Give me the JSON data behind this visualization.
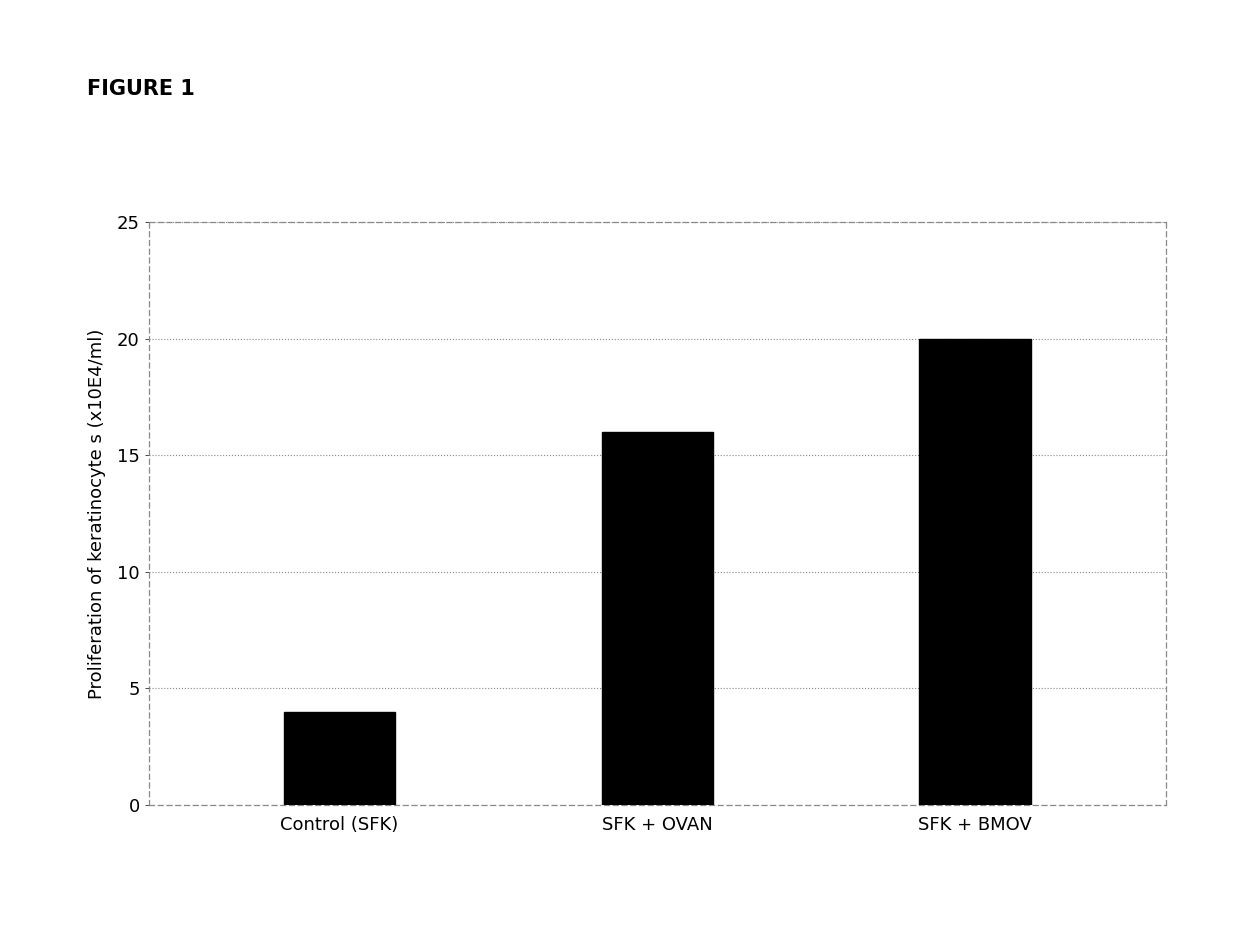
{
  "categories": [
    "Control (SFK)",
    "SFK + OVAN",
    "SFK + BMOV"
  ],
  "values": [
    4,
    16,
    20
  ],
  "bar_color": "#000000",
  "bar_width": 0.35,
  "title": "FIGURE 1",
  "ylabel": "Proliferation of keratinocyte s (x10E4/ml)",
  "ylim": [
    0,
    25
  ],
  "yticks": [
    0,
    5,
    10,
    15,
    20,
    25
  ],
  "background_color": "#ffffff",
  "figure_bg": "#ffffff",
  "title_fontsize": 15,
  "axis_fontsize": 13,
  "tick_fontsize": 13,
  "label_fontsize": 13,
  "spine_color": "#888888",
  "grid_color": "#888888"
}
